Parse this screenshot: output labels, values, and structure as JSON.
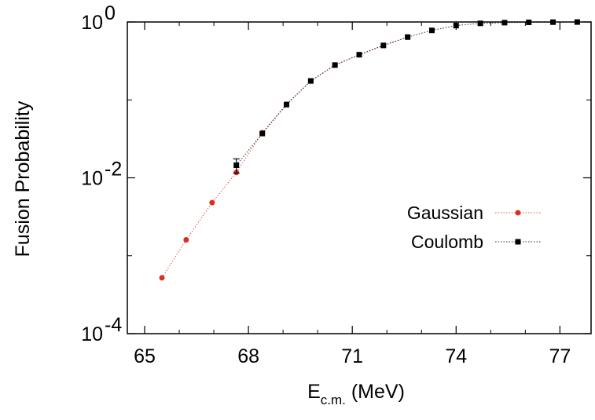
{
  "chart_data": {
    "type": "scatter",
    "xlabel": "E",
    "xlabel_sub": "c.m.",
    "xlabel_unit": "(MeV)",
    "ylabel": "Fusion Probability",
    "x_ticks": [
      "65",
      "68",
      "71",
      "74",
      "77"
    ],
    "x_tick_values": [
      65,
      68,
      71,
      74,
      77
    ],
    "y_ticks": [
      {
        "base": "10",
        "exp": "0",
        "value": 1
      },
      {
        "base": "10",
        "exp": "-2",
        "value": 0.01
      },
      {
        "base": "10",
        "exp": "-4",
        "value": 0.0001
      }
    ],
    "xlim": [
      64.5,
      77.9
    ],
    "ylim": [
      0.0001,
      1
    ],
    "y_scale": "log",
    "legend_position": "right",
    "series": [
      {
        "name": "Gaussian",
        "color": "#d7301f",
        "marker": "circle",
        "line": "dotted",
        "x": [
          65.5,
          66.2,
          66.95,
          67.65,
          68.4,
          69.1,
          69.8,
          70.5,
          71.2,
          71.9,
          72.6
        ],
        "y": [
          0.00052,
          0.0016,
          0.0048,
          0.0117,
          0.038,
          0.088,
          0.175,
          0.28,
          0.38,
          0.5,
          0.64
        ]
      },
      {
        "name": "Coulomb",
        "color": "#000000",
        "marker": "square",
        "line": "dotted",
        "x": [
          67.65,
          68.4,
          69.1,
          69.8,
          70.5,
          71.2,
          71.9,
          72.6,
          73.3,
          74.0,
          74.7,
          75.4,
          76.1,
          76.8,
          77.5
        ],
        "y": [
          0.0145,
          0.037,
          0.087,
          0.175,
          0.28,
          0.38,
          0.5,
          0.64,
          0.78,
          0.9,
          0.96,
          0.98,
          0.99,
          0.995,
          0.998
        ],
        "err_low": [
          0.003,
          0,
          0,
          0,
          0,
          0,
          0,
          0,
          0,
          0,
          0,
          0,
          0,
          0,
          0
        ],
        "err_high": [
          0.003,
          0,
          0,
          0,
          0,
          0,
          0,
          0,
          0,
          0,
          0,
          0,
          0,
          0,
          0
        ]
      }
    ]
  }
}
